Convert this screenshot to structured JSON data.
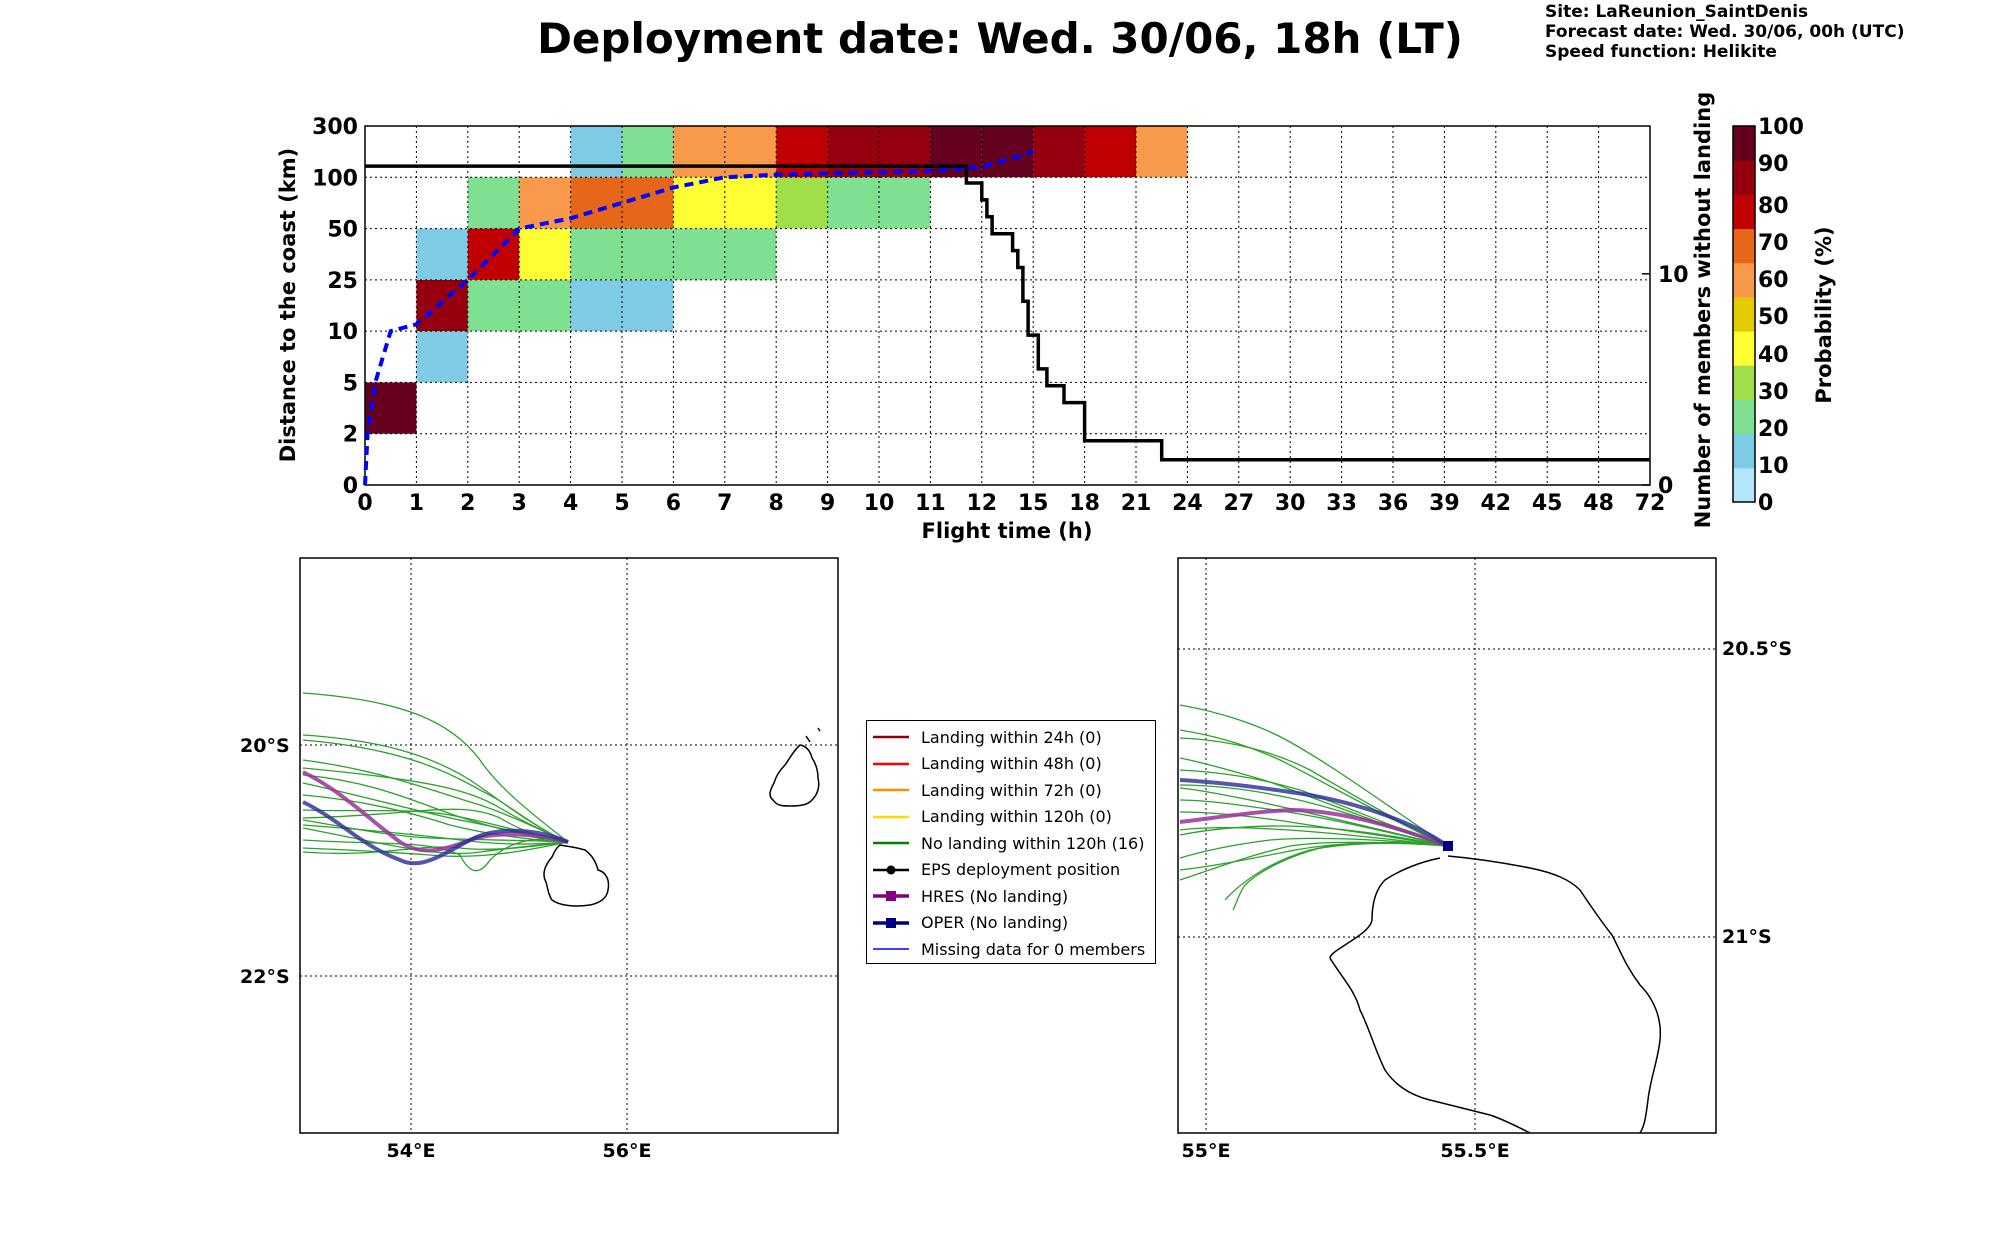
{
  "header": {
    "title": "Deployment date: Wed. 30/06, 18h (LT)",
    "site": "Site: LaReunion_SaintDenis",
    "forecast_date": "Forecast date: Wed. 30/06, 00h (UTC)",
    "speed_function": "Speed function: Helikite"
  },
  "chart_data": [
    {
      "type": "heatmap",
      "xlabel": "Flight time (h)",
      "ylabel": "Distance to the coast (km)",
      "ylabel_right": "Number of members without landing",
      "x_ticks": [
        "0",
        "1",
        "2",
        "3",
        "4",
        "5",
        "6",
        "7",
        "8",
        "9",
        "10",
        "11",
        "12",
        "15",
        "18",
        "21",
        "24",
        "27",
        "30",
        "33",
        "36",
        "39",
        "42",
        "45",
        "48",
        "72"
      ],
      "y_ticks": [
        "0",
        "2",
        "5",
        "10",
        "25",
        "50",
        "100",
        "300"
      ],
      "y_right_ticks": [
        "0",
        "10"
      ],
      "y_right_range": [
        0,
        17
      ],
      "colorbar": {
        "label": "Probability (%)",
        "ticks": [
          "0",
          "10",
          "20",
          "30",
          "40",
          "50",
          "60",
          "70",
          "80",
          "90",
          "100"
        ],
        "colors": [
          "#b3e5fb",
          "#7fcbe5",
          "#7fe091",
          "#9fe04a",
          "#ffff33",
          "#e3cc00",
          "#f9994c",
          "#e6661a",
          "#c00000",
          "#96000e",
          "#65001e"
        ]
      },
      "cells": [
        {
          "x": "0-1",
          "y": "2-5",
          "probability_bin": "90-100"
        },
        {
          "x": "1-2",
          "y": "5-10",
          "probability_bin": "0-10"
        },
        {
          "x": "1-2",
          "y": "10-25",
          "probability_bin": "80-90"
        },
        {
          "x": "1-2",
          "y": "25-50",
          "probability_bin": "0-10"
        },
        {
          "x": "2-3",
          "y": "10-25",
          "probability_bin": "10-20"
        },
        {
          "x": "2-3",
          "y": "25-50",
          "probability_bin": "70-80"
        },
        {
          "x": "2-3",
          "y": "50-100",
          "probability_bin": "10-20"
        },
        {
          "x": "3-4",
          "y": "10-25",
          "probability_bin": "10-20"
        },
        {
          "x": "3-4",
          "y": "25-50",
          "probability_bin": "30-40"
        },
        {
          "x": "3-4",
          "y": "50-100",
          "probability_bin": "50-60"
        },
        {
          "x": "4-5",
          "y": "10-25",
          "probability_bin": "0-10"
        },
        {
          "x": "4-5",
          "y": "25-50",
          "probability_bin": "10-20"
        },
        {
          "x": "4-5",
          "y": "50-100",
          "probability_bin": "60-70"
        },
        {
          "x": "4-5",
          "y": "100-300",
          "probability_bin": "0-10"
        },
        {
          "x": "5-6",
          "y": "10-25",
          "probability_bin": "0-10"
        },
        {
          "x": "5-6",
          "y": "25-50",
          "probability_bin": "10-20"
        },
        {
          "x": "5-6",
          "y": "50-100",
          "probability_bin": "60-70"
        },
        {
          "x": "5-6",
          "y": "100-300",
          "probability_bin": "10-20"
        },
        {
          "x": "6-7",
          "y": "25-50",
          "probability_bin": "10-20"
        },
        {
          "x": "6-7",
          "y": "50-100",
          "probability_bin": "30-40"
        },
        {
          "x": "6-7",
          "y": "100-300",
          "probability_bin": "50-60"
        },
        {
          "x": "7-8",
          "y": "25-50",
          "probability_bin": "10-20"
        },
        {
          "x": "7-8",
          "y": "50-100",
          "probability_bin": "30-40"
        },
        {
          "x": "7-8",
          "y": "100-300",
          "probability_bin": "50-60"
        },
        {
          "x": "8-9",
          "y": "50-100",
          "probability_bin": "20-30"
        },
        {
          "x": "8-9",
          "y": "100-300",
          "probability_bin": "70-80"
        },
        {
          "x": "9-10",
          "y": "50-100",
          "probability_bin": "10-20"
        },
        {
          "x": "9-10",
          "y": "100-300",
          "probability_bin": "80-90"
        },
        {
          "x": "10-11",
          "y": "50-100",
          "probability_bin": "10-20"
        },
        {
          "x": "10-11",
          "y": "100-300",
          "probability_bin": "80-90"
        },
        {
          "x": "11-12",
          "y": "100-300",
          "probability_bin": "90-100"
        },
        {
          "x": "12-15",
          "y": "100-300",
          "probability_bin": "90-100"
        },
        {
          "x": "15-18",
          "y": "100-300",
          "probability_bin": "80-90"
        },
        {
          "x": "18-21",
          "y": "100-300",
          "probability_bin": "70-80"
        },
        {
          "x": "21-24",
          "y": "100-300",
          "probability_bin": "50-60"
        }
      ],
      "series": [
        {
          "style": "blue dashed",
          "x": [
            0,
            0.05,
            0.2,
            0.5,
            1,
            2,
            3,
            4,
            5,
            6,
            7,
            8,
            9,
            10,
            11,
            12,
            15
          ],
          "y": [
            0,
            2,
            5,
            10,
            12,
            25,
            50,
            60,
            75,
            90,
            100,
            110,
            115,
            120,
            125,
            140,
            200
          ]
        },
        {
          "style": "black step",
          "axis": "right",
          "x": [
            0,
            11.7,
            11.7,
            12,
            12,
            12.3,
            12.3,
            12.6,
            12.6,
            13.8,
            13.8,
            14.1,
            14.1,
            14.4,
            14.4,
            14.7,
            14.7,
            15.3,
            15.3,
            15.8,
            15.8,
            16.3,
            16.3,
            16.8,
            16.8,
            17.3,
            17.3,
            18.0,
            18.0,
            18.2,
            18.2,
            22.5,
            22.5,
            72
          ],
          "y": [
            15.1,
            15.1,
            14.3,
            14.3,
            13.5,
            13.5,
            12.7,
            12.7,
            11.9,
            11.9,
            11.1,
            11.1,
            10.3,
            10.3,
            8.7,
            8.7,
            7.1,
            7.1,
            5.5,
            5.5,
            4.7,
            4.7,
            4.7,
            4.7,
            3.9,
            3.9,
            3.9,
            3.9,
            2.1,
            2.1,
            2.1,
            2.1,
            1.2,
            1.2
          ]
        }
      ]
    },
    {
      "type": "line",
      "map": "left",
      "lat_labels": [
        "20°S",
        "22°S"
      ],
      "lon_labels": [
        "54°E",
        "56°E"
      ],
      "lon_range": [
        53,
        58
      ],
      "lat_range": [
        -23.5,
        -18.5
      ]
    },
    {
      "type": "line",
      "map": "right",
      "lat_labels": [
        "20.5°S",
        "21°S"
      ],
      "lon_labels": [
        "55°E",
        "55.5°E"
      ],
      "lon_range": [
        54.95,
        55.95
      ],
      "lat_range": [
        -21.4,
        -20.35
      ]
    }
  ],
  "legend": {
    "items": [
      {
        "label": "Landing within 24h (0)",
        "color": "#8b0000",
        "marker": "none"
      },
      {
        "label": "Landing within 48h (0)",
        "color": "#ff0000",
        "marker": "none"
      },
      {
        "label": "Landing within 72h (0)",
        "color": "#ff8c00",
        "marker": "none"
      },
      {
        "label": "Landing within 120h (0)",
        "color": "#ffd700",
        "marker": "none"
      },
      {
        "label": "No landing within 120h (16)",
        "color": "#008000",
        "marker": "none"
      },
      {
        "label": "EPS deployment position",
        "color": "#000000",
        "marker": "circle"
      },
      {
        "label": "HRES (No landing)",
        "color": "#800080",
        "marker": "square"
      },
      {
        "label": "OPER (No landing)",
        "color": "#000080",
        "marker": "square"
      },
      {
        "label": "Missing data for 0 members",
        "color": "#0000ff",
        "marker": "none"
      }
    ]
  }
}
